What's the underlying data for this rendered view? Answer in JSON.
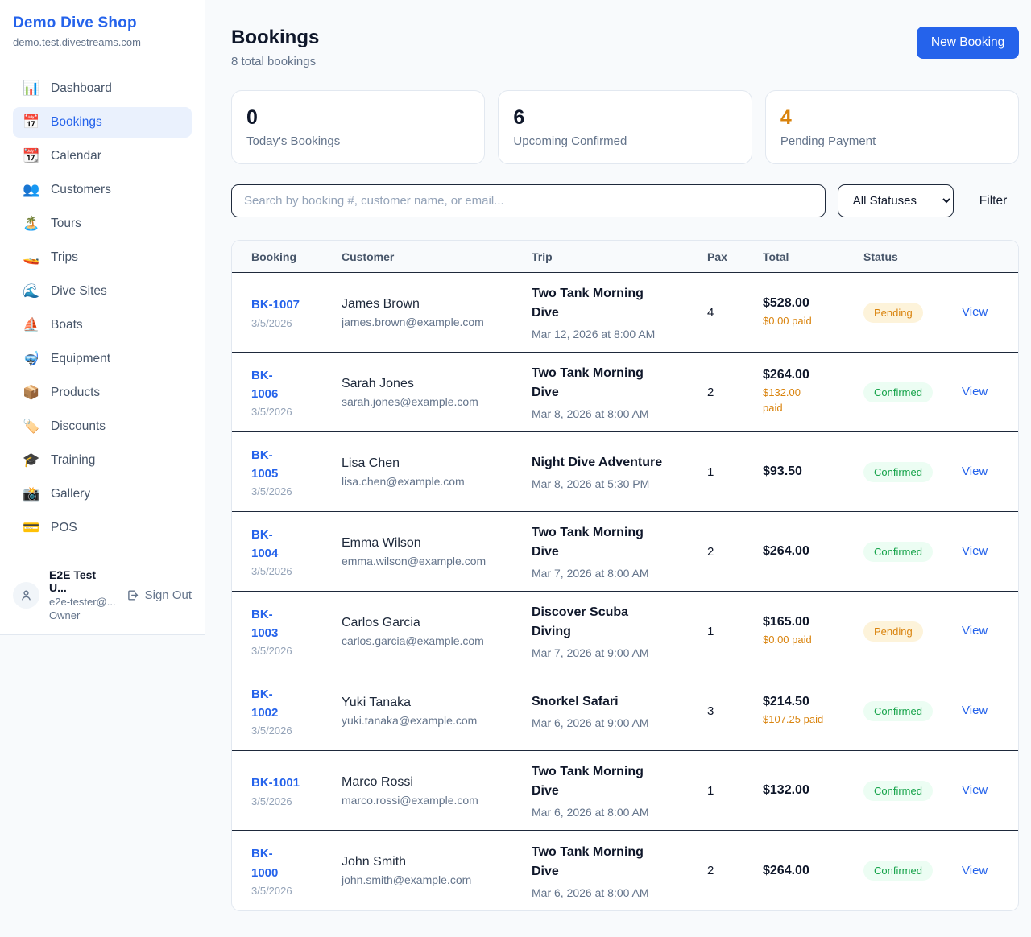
{
  "sidebar": {
    "brand": {
      "title": "Demo Dive Shop",
      "domain": "demo.test.divestreams.com"
    },
    "items": [
      {
        "icon": "📊",
        "icon_name": "bar-chart-icon",
        "label": "Dashboard",
        "active": false
      },
      {
        "icon": "📅",
        "icon_name": "calendar-icon",
        "label": "Bookings",
        "active": true
      },
      {
        "icon": "📆",
        "icon_name": "tear-off-calendar-icon",
        "label": "Calendar",
        "active": false
      },
      {
        "icon": "👥",
        "icon_name": "people-icon",
        "label": "Customers",
        "active": false
      },
      {
        "icon": "🏝️",
        "icon_name": "island-icon",
        "label": "Tours",
        "active": false
      },
      {
        "icon": "🚤",
        "icon_name": "speedboat-icon",
        "label": "Trips",
        "active": false
      },
      {
        "icon": "🌊",
        "icon_name": "wave-icon",
        "label": "Dive Sites",
        "active": false
      },
      {
        "icon": "⛵",
        "icon_name": "sailboat-icon",
        "label": "Boats",
        "active": false
      },
      {
        "icon": "🤿",
        "icon_name": "diving-mask-icon",
        "label": "Equipment",
        "active": false
      },
      {
        "icon": "📦",
        "icon_name": "package-icon",
        "label": "Products",
        "active": false
      },
      {
        "icon": "🏷️",
        "icon_name": "label-tag-icon",
        "label": "Discounts",
        "active": false
      },
      {
        "icon": "🎓",
        "icon_name": "graduation-cap-icon",
        "label": "Training",
        "active": false
      },
      {
        "icon": "📸",
        "icon_name": "camera-flash-icon",
        "label": "Gallery",
        "active": false
      },
      {
        "icon": "💳",
        "icon_name": "credit-card-icon",
        "label": "POS",
        "active": false
      }
    ],
    "user": {
      "name": "E2E Test U...",
      "email": "e2e-tester@...",
      "role": "Owner",
      "signout_label": "Sign Out"
    }
  },
  "header": {
    "title": "Bookings",
    "subtitle": "8 total bookings",
    "new_booking_label": "New Booking"
  },
  "stats": [
    {
      "value": "0",
      "label": "Today's Bookings",
      "color": "dark"
    },
    {
      "value": "6",
      "label": "Upcoming Confirmed",
      "color": "dark"
    },
    {
      "value": "4",
      "label": "Pending Payment",
      "color": "orange"
    }
  ],
  "controls": {
    "search_placeholder": "Search by booking #, customer name, or email...",
    "status_selected": "All Statuses",
    "filter_label": "Filter"
  },
  "table": {
    "columns": [
      "Booking",
      "Customer",
      "Trip",
      "Pax",
      "Total",
      "Status"
    ],
    "rows": [
      {
        "number": "BK-1007",
        "date": "3/5/2026",
        "customer_name": "James Brown",
        "customer_email": "james.brown@example.com",
        "trip_name": "Two Tank Morning\nDive",
        "trip_datetime": "Mar 12, 2026 at 8:00 AM",
        "pax": "4",
        "total": "$528.00",
        "paid": "$0.00 paid",
        "status": "Pending",
        "action": "View"
      },
      {
        "number": "BK-\n1006",
        "date": "3/5/2026",
        "customer_name": "Sarah Jones",
        "customer_email": "sarah.jones@example.com",
        "trip_name": "Two Tank Morning\nDive",
        "trip_datetime": "Mar 8, 2026 at 8:00 AM",
        "pax": "2",
        "total": "$264.00",
        "paid": "$132.00\npaid",
        "status": "Confirmed",
        "action": "View"
      },
      {
        "number": "BK-\n1005",
        "date": "3/5/2026",
        "customer_name": "Lisa Chen",
        "customer_email": "lisa.chen@example.com",
        "trip_name": "Night Dive Adventure",
        "trip_datetime": "Mar 8, 2026 at 5:30 PM",
        "pax": "1",
        "total": "$93.50",
        "paid": "",
        "status": "Confirmed",
        "action": "View"
      },
      {
        "number": "BK-\n1004",
        "date": "3/5/2026",
        "customer_name": "Emma Wilson",
        "customer_email": "emma.wilson@example.com",
        "trip_name": "Two Tank Morning\nDive",
        "trip_datetime": "Mar 7, 2026 at 8:00 AM",
        "pax": "2",
        "total": "$264.00",
        "paid": "",
        "status": "Confirmed",
        "action": "View"
      },
      {
        "number": "BK-\n1003",
        "date": "3/5/2026",
        "customer_name": "Carlos Garcia",
        "customer_email": "carlos.garcia@example.com",
        "trip_name": "Discover Scuba\nDiving",
        "trip_datetime": "Mar 7, 2026 at 9:00 AM",
        "pax": "1",
        "total": "$165.00",
        "paid": "$0.00 paid",
        "status": "Pending",
        "action": "View"
      },
      {
        "number": "BK-\n1002",
        "date": "3/5/2026",
        "customer_name": "Yuki Tanaka",
        "customer_email": "yuki.tanaka@example.com",
        "trip_name": "Snorkel Safari",
        "trip_datetime": "Mar 6, 2026 at 9:00 AM",
        "pax": "3",
        "total": "$214.50",
        "paid": "$107.25 paid",
        "status": "Confirmed",
        "action": "View"
      },
      {
        "number": "BK-1001",
        "date": "3/5/2026",
        "customer_name": "Marco Rossi",
        "customer_email": "marco.rossi@example.com",
        "trip_name": "Two Tank Morning\nDive",
        "trip_datetime": "Mar 6, 2026 at 8:00 AM",
        "pax": "1",
        "total": "$132.00",
        "paid": "",
        "status": "Confirmed",
        "action": "View"
      },
      {
        "number": "BK-\n1000",
        "date": "3/5/2026",
        "customer_name": "John Smith",
        "customer_email": "john.smith@example.com",
        "trip_name": "Two Tank Morning\nDive",
        "trip_datetime": "Mar 6, 2026 at 8:00 AM",
        "pax": "2",
        "total": "$264.00",
        "paid": "",
        "status": "Confirmed",
        "action": "View"
      }
    ]
  },
  "colors": {
    "accent_blue": "#2563eb",
    "pending_orange": "#d9830d",
    "confirmed_green": "#16a34a",
    "page_background": "#f8fafc"
  }
}
